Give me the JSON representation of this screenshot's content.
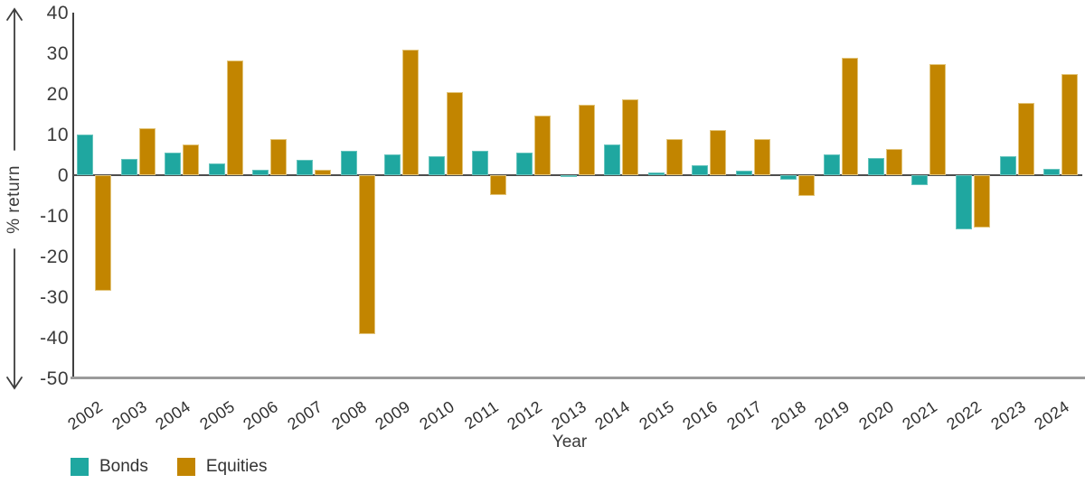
{
  "chart_data": {
    "type": "bar",
    "title": "",
    "xlabel": "Year",
    "ylabel": "% return",
    "ylim": [
      -50,
      40
    ],
    "yticks": [
      40,
      30,
      20,
      10,
      0,
      -10,
      -20,
      -30,
      -40,
      -50
    ],
    "grid": false,
    "legend_position": "bottom-left",
    "categories": [
      "2002",
      "2003",
      "2004",
      "2005",
      "2006",
      "2007",
      "2008",
      "2009",
      "2010",
      "2011",
      "2012",
      "2013",
      "2014",
      "2015",
      "2016",
      "2017",
      "2018",
      "2019",
      "2020",
      "2021",
      "2022",
      "2023",
      "2024"
    ],
    "series": [
      {
        "name": "Bonds",
        "color": "#1FA7A0",
        "values": [
          10,
          4,
          5.5,
          3,
          1.4,
          3.8,
          6,
          5.2,
          4.7,
          6,
          5.5,
          -0.5,
          7.5,
          0.6,
          2.4,
          1.1,
          -1.2,
          5.1,
          4.2,
          -2.5,
          -13.3,
          4.7,
          1.5
        ]
      },
      {
        "name": "Equities",
        "color": "#C28500",
        "values": [
          -28.5,
          11.5,
          7.5,
          28.3,
          9,
          1.3,
          -39.2,
          31,
          20.5,
          -4.8,
          14.7,
          17.3,
          18.7,
          9,
          11.2,
          8.8,
          -5.2,
          28.8,
          6.4,
          27.3,
          -12.9,
          17.8,
          25
        ]
      }
    ]
  },
  "axes": {
    "ylabel": "% return",
    "xlabel": "Year"
  },
  "legend": {
    "items": [
      {
        "label": "Bonds",
        "color": "#1FA7A0"
      },
      {
        "label": "Equities",
        "color": "#C28500"
      }
    ]
  }
}
